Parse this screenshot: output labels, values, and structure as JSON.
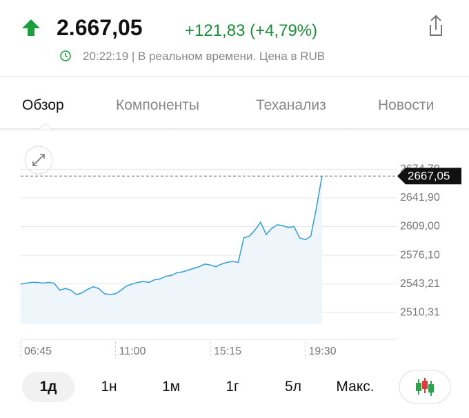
{
  "header": {
    "price": "2.667,05",
    "change": "+121,83 (+4,79%)",
    "status": "20:22:19 | В реальном времени. Цена в RUB"
  },
  "tabs": [
    "Обзор",
    "Компоненты",
    "Теханализ",
    "Новости"
  ],
  "active_tab": 0,
  "chart_data": {
    "type": "line",
    "x": [
      "06:45",
      "07:00",
      "07:15",
      "07:30",
      "07:45",
      "08:00",
      "08:15",
      "08:30",
      "08:45",
      "09:00",
      "09:15",
      "09:30",
      "09:45",
      "10:00",
      "10:15",
      "10:30",
      "10:45",
      "11:00",
      "11:15",
      "11:30",
      "11:45",
      "12:00",
      "12:15",
      "12:30",
      "12:45",
      "13:00",
      "13:15",
      "13:30",
      "13:45",
      "14:00",
      "14:15",
      "14:30",
      "14:45",
      "15:00",
      "15:15",
      "15:30",
      "15:45",
      "16:00",
      "16:15",
      "16:30",
      "16:45",
      "17:00",
      "17:15",
      "17:30",
      "17:45",
      "18:00",
      "18:15",
      "18:30",
      "18:45",
      "19:00",
      "19:15",
      "19:30",
      "19:45",
      "20:00",
      "20:15"
    ],
    "values": [
      2543,
      2544,
      2545,
      2545,
      2544,
      2545,
      2544,
      2536,
      2538,
      2536,
      2531,
      2533,
      2537,
      2540,
      2538,
      2532,
      2531,
      2532,
      2536,
      2541,
      2543,
      2545,
      2546,
      2545,
      2548,
      2549,
      2552,
      2553,
      2556,
      2557,
      2559,
      2561,
      2563,
      2566,
      2565,
      2563,
      2566,
      2568,
      2569,
      2568,
      2596,
      2598,
      2605,
      2614,
      2600,
      2607,
      2611,
      2610,
      2608,
      2609,
      2596,
      2594,
      2598,
      2630,
      2667.05
    ],
    "color": "#3a9fd8",
    "xlim": [
      "06:45",
      "23:45"
    ],
    "xticks": [
      "06:45",
      "11:00",
      "15:15",
      "19:30"
    ],
    "ylim": [
      2497,
      2687
    ],
    "yticks": [
      {
        "value": 2674.79,
        "label": "2674,79"
      },
      {
        "value": 2641.9,
        "label": "2641,90"
      },
      {
        "value": 2609.0,
        "label": "2609,00"
      },
      {
        "value": 2576.1,
        "label": "2576,10"
      },
      {
        "value": 2543.21,
        "label": "2543,21"
      },
      {
        "value": 2510.31,
        "label": "2510,31"
      }
    ],
    "last_price": {
      "value": 2667.05,
      "label": "2667,05"
    },
    "grid": true
  },
  "ranges": [
    "1д",
    "1н",
    "1м",
    "1г",
    "5л",
    "Макс."
  ],
  "active_range": 0
}
